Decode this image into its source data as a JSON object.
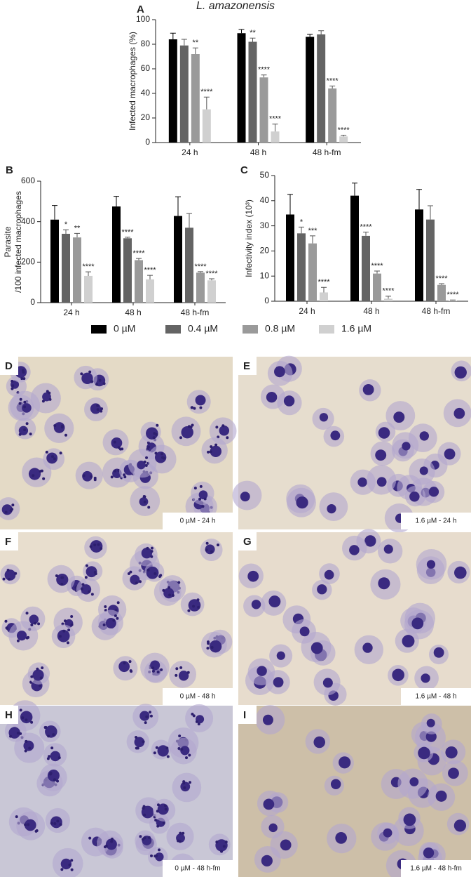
{
  "chart_data": [
    {
      "type": "bar",
      "panel": "A",
      "title": "L. amazonensis",
      "y_label": [
        "Infected macrophages (%)"
      ],
      "categories": [
        "24 h",
        "48 h",
        "48 h-fm"
      ],
      "ylim": [
        0,
        100
      ],
      "yticks": [
        0,
        20,
        40,
        60,
        80,
        100
      ],
      "series": [
        {
          "name": "0 µM",
          "color": "#000000",
          "values": [
            84,
            89,
            86
          ],
          "errors": [
            5,
            3,
            2
          ],
          "annotations": [
            null,
            null,
            null
          ]
        },
        {
          "name": "0.4 µM",
          "color": "#646464",
          "values": [
            79,
            82,
            88
          ],
          "errors": [
            5,
            3,
            3
          ],
          "annotations": [
            null,
            "**",
            null
          ]
        },
        {
          "name": "0.8 µM",
          "color": "#9a9a9a",
          "values": [
            72,
            53,
            44
          ],
          "errors": [
            5,
            2,
            2
          ],
          "annotations": [
            "**",
            "****",
            "****"
          ]
        },
        {
          "name": "1.6 µM",
          "color": "#d0d0d0",
          "values": [
            27,
            9,
            5
          ],
          "errors": [
            10,
            6,
            1
          ],
          "annotations": [
            "****",
            "****",
            "****"
          ]
        }
      ]
    },
    {
      "type": "bar",
      "panel": "B",
      "y_label": [
        "Parasite",
        "/100 infected macrophages"
      ],
      "categories": [
        "24 h",
        "48 h",
        "48 h-fm"
      ],
      "ylim": [
        0,
        600
      ],
      "yticks": [
        0,
        200,
        400,
        600
      ],
      "series": [
        {
          "color": "#000000",
          "values": [
            410,
            475,
            428
          ],
          "errors": [
            70,
            50,
            95
          ],
          "annotations": [
            null,
            null,
            null
          ]
        },
        {
          "color": "#646464",
          "values": [
            340,
            318,
            370
          ],
          "errors": [
            20,
            5,
            70
          ],
          "annotations": [
            "*",
            "****",
            null
          ]
        },
        {
          "color": "#9a9a9a",
          "values": [
            322,
            210,
            148
          ],
          "errors": [
            20,
            8,
            5
          ],
          "annotations": [
            "**",
            "****",
            "****"
          ]
        },
        {
          "color": "#d0d0d0",
          "values": [
            132,
            115,
            110
          ],
          "errors": [
            20,
            20,
            8
          ],
          "annotations": [
            "****",
            "****",
            "****"
          ]
        }
      ]
    },
    {
      "type": "bar",
      "panel": "C",
      "y_label": [
        "Infectivity index (10³)"
      ],
      "categories": [
        "24 h",
        "48 h",
        "48 h-fm"
      ],
      "ylim": [
        0,
        50
      ],
      "yticks": [
        0,
        10,
        20,
        30,
        40,
        50
      ],
      "series": [
        {
          "color": "#000000",
          "values": [
            34.5,
            42,
            36.5
          ],
          "errors": [
            8,
            5,
            8
          ],
          "annotations": [
            null,
            null,
            null
          ]
        },
        {
          "color": "#646464",
          "values": [
            27,
            26,
            32.5
          ],
          "errors": [
            2.5,
            1.5,
            5.5
          ],
          "annotations": [
            "*",
            "****",
            null
          ]
        },
        {
          "color": "#9a9a9a",
          "values": [
            23,
            11,
            6.5
          ],
          "errors": [
            3,
            1,
            0.5
          ],
          "annotations": [
            "***",
            "****",
            "****"
          ]
        },
        {
          "color": "#d0d0d0",
          "values": [
            3.5,
            1,
            0.3
          ],
          "errors": [
            2,
            1,
            0.2
          ],
          "annotations": [
            "****",
            "****",
            "****"
          ]
        }
      ]
    }
  ],
  "micrographs": [
    {
      "label": "D",
      "caption": "0 µM - 24 h"
    },
    {
      "label": "E",
      "caption": "1.6 µM - 24 h"
    },
    {
      "label": "F",
      "caption": "0 µM - 48 h"
    },
    {
      "label": "G",
      "caption": "1.6 µM - 48 h"
    },
    {
      "label": "H",
      "caption": "0 µM - 48 h-fm"
    },
    {
      "label": "I",
      "caption": "1.6 µM - 48 h-fm"
    }
  ]
}
